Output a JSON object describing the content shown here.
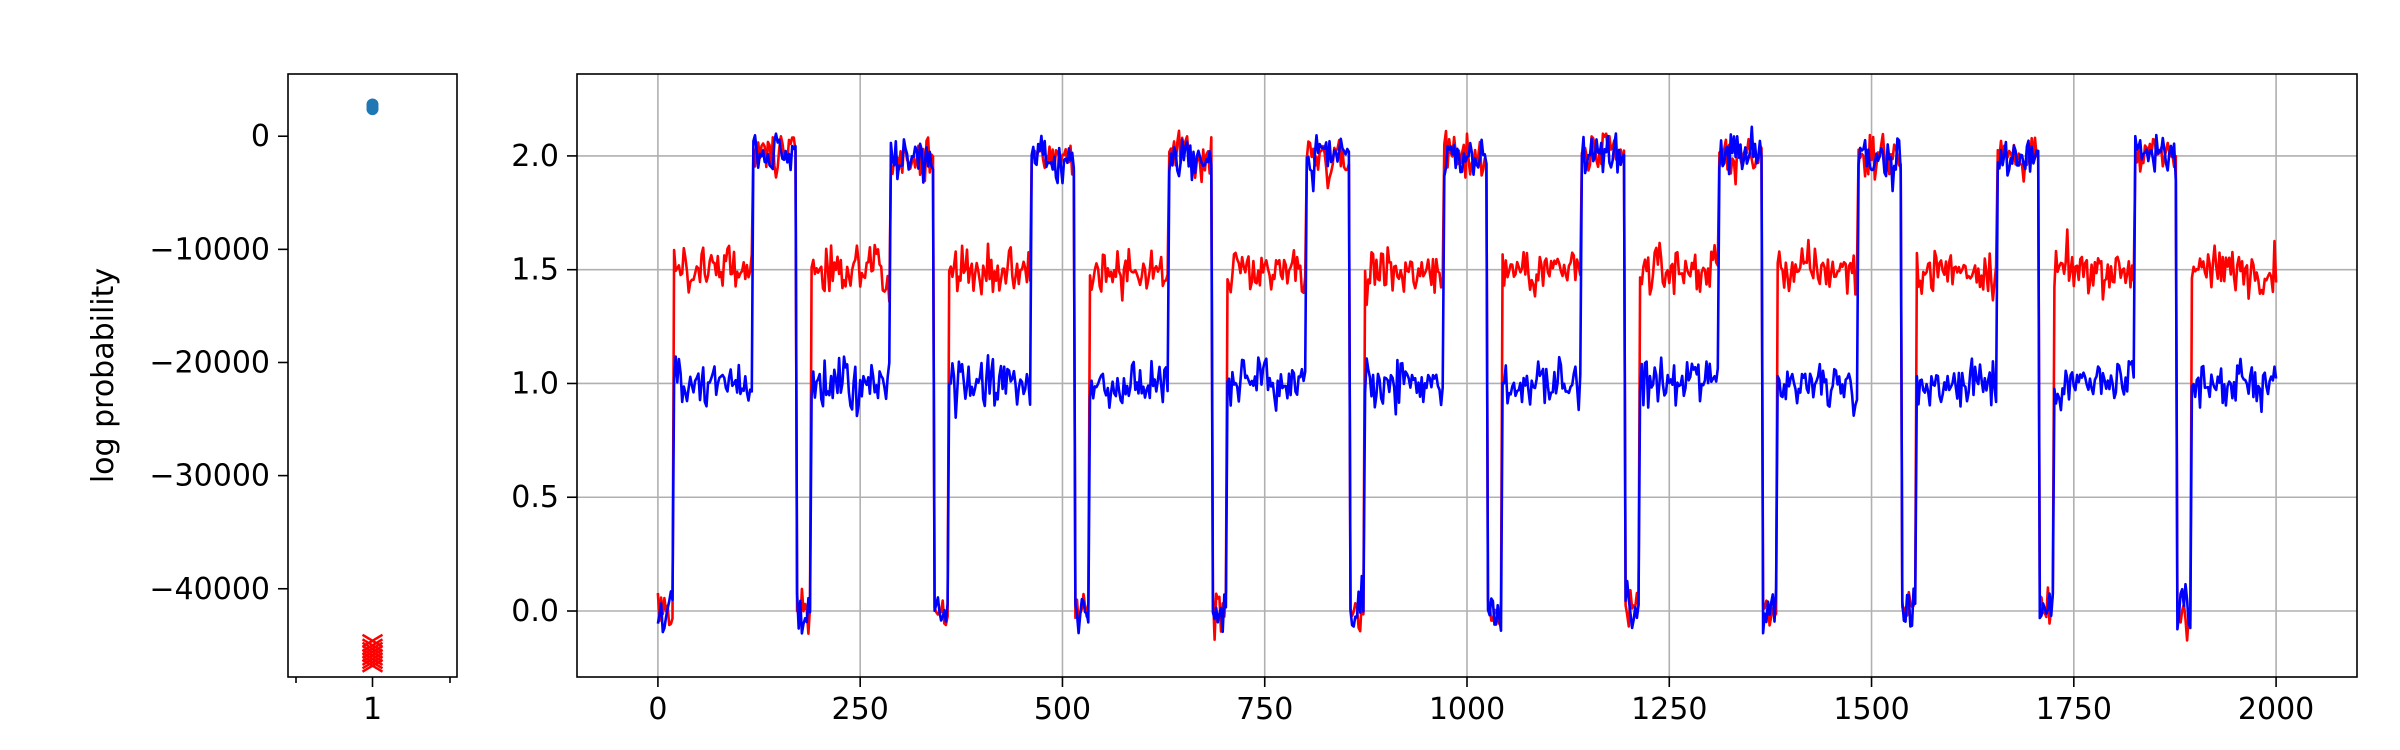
{
  "chart_data": [
    {
      "type": "scatter",
      "ylabel": "log probability",
      "xlabel": "",
      "title": "",
      "x_ticks": [
        "1"
      ],
      "y_ticks": [
        0,
        -10000,
        -20000,
        -30000,
        -40000
      ],
      "y_tick_labels": [
        "0",
        "−10000",
        "−20000",
        "−30000",
        "−40000"
      ],
      "xlim": [
        0.5,
        1.5
      ],
      "ylim": [
        -47800,
        5500
      ],
      "grid": false,
      "series": [
        {
          "marker": "circle",
          "color": "#1f77b4",
          "x": [
            1,
            1,
            1
          ],
          "y": [
            2600,
            2800,
            2400
          ]
        },
        {
          "marker": "x",
          "color": "#ff0000",
          "x": [
            1,
            1,
            1,
            1,
            1,
            1,
            1,
            1
          ],
          "y": [
            -44600,
            -45000,
            -45300,
            -45600,
            -45900,
            -46200,
            -46500,
            -46800
          ]
        }
      ]
    },
    {
      "type": "line",
      "title": "",
      "xlabel": "",
      "ylabel": "",
      "xlim": [
        -100,
        2100
      ],
      "ylim": [
        -0.29,
        2.36
      ],
      "x_ticks": [
        0,
        250,
        500,
        750,
        1000,
        1250,
        1500,
        1750,
        2000
      ],
      "x_tick_labels": [
        "0",
        "250",
        "500",
        "750",
        "1000",
        "1250",
        "1500",
        "1750",
        "2000"
      ],
      "y_ticks": [
        0.0,
        0.5,
        1.0,
        1.5,
        2.0
      ],
      "y_tick_labels": [
        "0.0",
        "0.5",
        "1.0",
        "1.5",
        "2.0"
      ],
      "grid": true,
      "x": {
        "start": 0,
        "end": 2000,
        "step": 2
      },
      "segments": [
        [
          0,
          20,
          0.0,
          0.0
        ],
        [
          20,
          118,
          1.0,
          1.5
        ],
        [
          118,
          172,
          2.0,
          2.0
        ],
        [
          172,
          190,
          0.0,
          0.0
        ],
        [
          190,
          288,
          1.0,
          1.5
        ],
        [
          288,
          342,
          2.0,
          2.0
        ],
        [
          342,
          360,
          0.0,
          0.0
        ],
        [
          360,
          462,
          1.0,
          1.5
        ],
        [
          462,
          515,
          2.0,
          2.0
        ],
        [
          515,
          533,
          0.0,
          0.0
        ],
        [
          533,
          632,
          1.0,
          1.5
        ],
        [
          632,
          685,
          2.0,
          2.0
        ],
        [
          685,
          703,
          0.0,
          0.0
        ],
        [
          703,
          802,
          1.0,
          1.5
        ],
        [
          802,
          855,
          2.0,
          2.0
        ],
        [
          855,
          873,
          0.0,
          0.0
        ],
        [
          873,
          972,
          1.0,
          1.5
        ],
        [
          972,
          1025,
          2.0,
          2.0
        ],
        [
          1025,
          1043,
          0.0,
          0.0
        ],
        [
          1043,
          1142,
          1.0,
          1.5
        ],
        [
          1142,
          1195,
          2.0,
          2.0
        ],
        [
          1195,
          1213,
          0.0,
          0.0
        ],
        [
          1213,
          1312,
          1.0,
          1.5
        ],
        [
          1312,
          1365,
          2.0,
          2.0
        ],
        [
          1365,
          1383,
          0.0,
          0.0
        ],
        [
          1383,
          1483,
          1.0,
          1.5
        ],
        [
          1483,
          1537,
          2.0,
          2.0
        ],
        [
          1537,
          1555,
          0.0,
          0.0
        ],
        [
          1555,
          1655,
          1.0,
          1.5
        ],
        [
          1655,
          1708,
          2.0,
          2.0
        ],
        [
          1708,
          1726,
          0.0,
          0.0
        ],
        [
          1726,
          1825,
          1.0,
          1.5
        ],
        [
          1825,
          1878,
          2.0,
          2.0
        ],
        [
          1878,
          1896,
          0.0,
          0.0
        ],
        [
          1896,
          2000,
          1.0,
          1.5
        ]
      ],
      "noise": 0.05,
      "series": [
        {
          "color": "#ff0000",
          "value_column": 3
        },
        {
          "color": "#0000ff",
          "value_column": 2
        }
      ]
    }
  ]
}
